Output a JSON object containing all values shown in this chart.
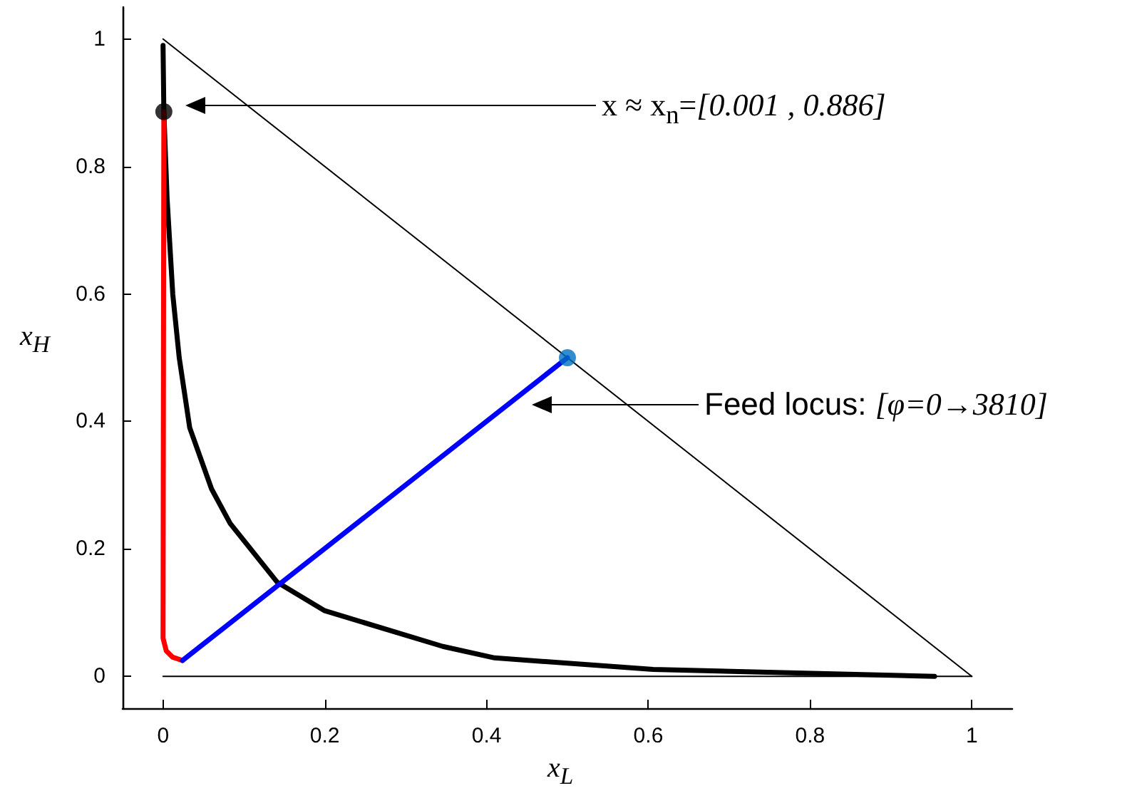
{
  "chart_data": {
    "type": "line",
    "xlabel": "x$_{L}$",
    "ylabel": "x$_{H}$",
    "xlim": [
      -0.05,
      1.05
    ],
    "ylim": [
      -0.05,
      1.05
    ],
    "xticks": [
      0,
      0.2,
      0.4,
      0.6,
      0.8,
      1
    ],
    "yticks": [
      0,
      0.2,
      0.4,
      0.6,
      0.8,
      1
    ],
    "grid": false,
    "series": [
      {
        "color": "#000000",
        "x": [
          0,
          1
        ],
        "values": [
          1,
          0
        ]
      },
      {
        "color": "#000000",
        "x": [
          0,
          1
        ],
        "values": [
          0,
          0
        ]
      },
      {
        "color": "#000000",
        "x": [
          0,
          0.001,
          0.005,
          0.012,
          0.02,
          0.033,
          0.06,
          0.083,
          0.141,
          0.2,
          0.346,
          0.41,
          0.606,
          0.954
        ],
        "values": [
          0.99,
          0.886,
          0.75,
          0.6,
          0.5,
          0.39,
          0.294,
          0.24,
          0.148,
          0.103,
          0.047,
          0.029,
          0.011,
          0.0
        ]
      },
      {
        "color": "#ff0000",
        "x": [
          0.001,
          0,
          0.004,
          0.012,
          0.024
        ],
        "values": [
          0.886,
          0.06,
          0.04,
          0.03,
          0.025
        ]
      },
      {
        "color": "#0000ff",
        "x": [
          0.024,
          0.5
        ],
        "values": [
          0.025,
          0.5
        ]
      },
      {
        "type": "scatter",
        "color": "#000000",
        "x": [
          0.001
        ],
        "values": [
          0.886
        ]
      },
      {
        "type": "scatter",
        "color": "#0070c0",
        "x": [
          0.5
        ],
        "values": [
          0.5
        ]
      }
    ],
    "annotations": [
      "x ≈ x$_{n}$=[0.001 , 0.886]",
      "Feed locus: [φ=0→3810]"
    ]
  }
}
